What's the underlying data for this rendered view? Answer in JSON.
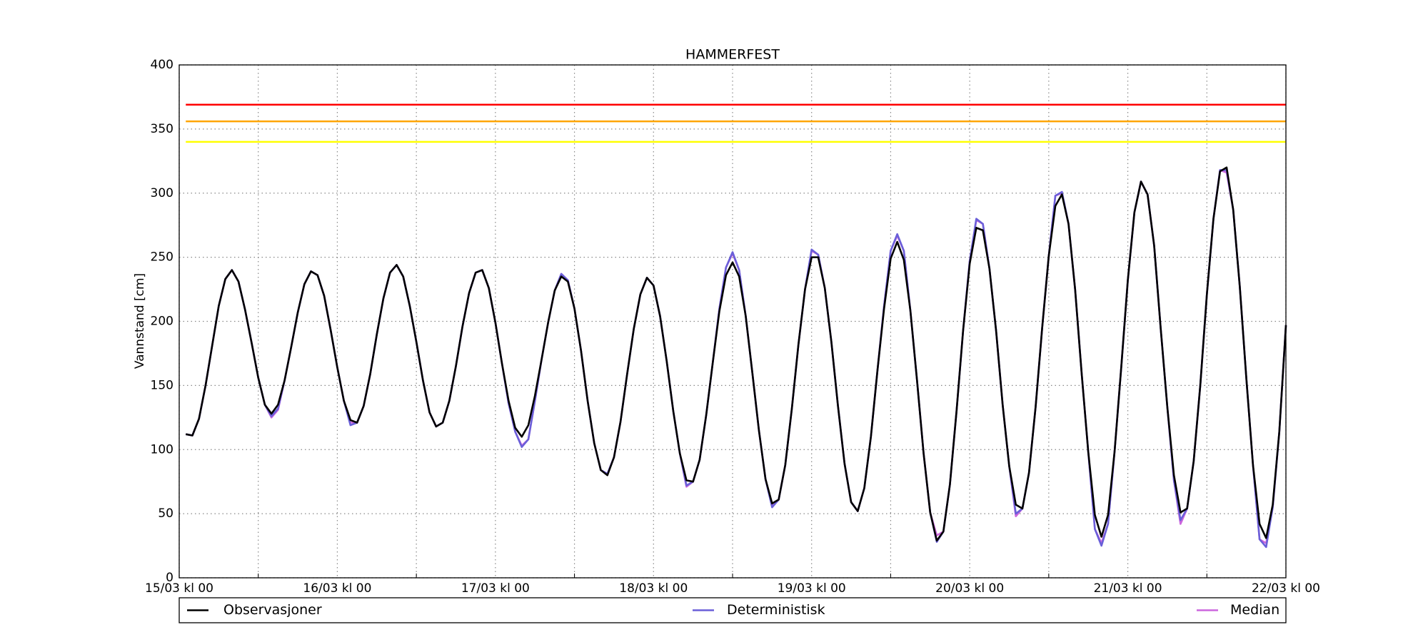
{
  "chart_data": {
    "type": "line",
    "title": "HAMMERFEST",
    "ylabel": "Vannstand [cm]",
    "x": [
      1,
      2,
      3,
      4,
      5,
      6,
      7,
      8,
      9,
      10,
      11,
      12,
      13,
      14,
      15,
      16,
      17,
      18,
      19,
      20,
      21,
      22,
      23,
      24,
      25,
      26,
      27,
      28,
      29,
      30,
      31,
      32,
      33,
      34,
      35,
      36,
      37,
      38,
      39,
      40,
      41,
      42,
      43,
      44,
      45,
      46,
      47,
      48,
      49,
      50,
      51,
      52,
      53,
      54,
      55,
      56,
      57,
      58,
      59,
      60,
      61,
      62,
      63,
      64,
      65,
      66,
      67,
      68,
      69,
      70,
      71,
      72,
      73,
      74,
      75,
      76,
      77,
      78,
      79,
      80,
      81,
      82,
      83,
      84,
      85,
      86,
      87,
      88,
      89,
      90,
      91,
      92,
      93,
      94,
      95,
      96,
      97,
      98,
      99,
      100,
      101,
      102,
      103,
      104,
      105,
      106,
      107,
      108,
      109,
      110,
      111,
      112,
      113,
      114,
      115,
      116,
      117,
      118,
      119,
      120,
      121,
      122,
      123,
      124,
      125,
      126,
      127,
      128,
      129,
      130,
      131,
      132,
      133,
      134,
      135,
      136,
      137,
      138,
      139,
      140,
      141,
      142,
      143,
      144,
      145,
      146,
      147,
      148,
      149,
      150,
      151,
      152,
      153,
      154,
      155,
      156,
      157,
      158,
      159,
      160,
      161,
      162,
      163,
      164,
      165,
      166,
      167,
      168
    ],
    "series": [
      {
        "name": "Observasjoner",
        "color": "#000000",
        "values": [
          112,
          111,
          124,
          150,
          181,
          212,
          233,
          240,
          231,
          209,
          183,
          156,
          135,
          128,
          135,
          154,
          180,
          207,
          229,
          239,
          236,
          220,
          193,
          164,
          138,
          123,
          121,
          134,
          159,
          190,
          218,
          238,
          244,
          235,
          212,
          184,
          154,
          129,
          118,
          121,
          138,
          165,
          196,
          222,
          238,
          240,
          226,
          199,
          167,
          138,
          117,
          110,
          119,
          142,
          170,
          199,
          224,
          235,
          231,
          210,
          177,
          138,
          105,
          84,
          80,
          94,
          122,
          159,
          194,
          221,
          234,
          228,
          204,
          169,
          130,
          97,
          76,
          75,
          92,
          127,
          168,
          208,
          236,
          246,
          235,
          204,
          160,
          115,
          77,
          58,
          61,
          88,
          132,
          182,
          225,
          250,
          250,
          226,
          184,
          134,
          89,
          59,
          52,
          70,
          110,
          162,
          210,
          249,
          262,
          248,
          208,
          154,
          97,
          51,
          29,
          36,
          73,
          130,
          193,
          245,
          273,
          271,
          241,
          193,
          135,
          87,
          57,
          54,
          82,
          133,
          195,
          251,
          290,
          299,
          276,
          225,
          159,
          98,
          49,
          32,
          49,
          99,
          164,
          232,
          285,
          309,
          299,
          259,
          194,
          133,
          80,
          51,
          54,
          91,
          150,
          221,
          280,
          317,
          320,
          287,
          227,
          155,
          88,
          42,
          31,
          57,
          114,
          197
        ]
      },
      {
        "name": "Deterministisk",
        "color": "#6a5fd8",
        "values": [
          112,
          111,
          124,
          150,
          181,
          212,
          233,
          240,
          231,
          209,
          183,
          156,
          135,
          126,
          132,
          154,
          180,
          207,
          229,
          239,
          236,
          220,
          193,
          164,
          138,
          119,
          121,
          134,
          159,
          190,
          218,
          238,
          244,
          235,
          212,
          184,
          154,
          129,
          118,
          121,
          138,
          165,
          196,
          222,
          238,
          240,
          226,
          199,
          167,
          136,
          114,
          102,
          108,
          138,
          170,
          199,
          224,
          237,
          232,
          210,
          177,
          138,
          105,
          84,
          81,
          94,
          122,
          159,
          194,
          221,
          234,
          228,
          204,
          169,
          130,
          97,
          72,
          75,
          92,
          127,
          168,
          210,
          242,
          254,
          240,
          204,
          160,
          115,
          77,
          55,
          61,
          88,
          132,
          182,
          225,
          256,
          252,
          226,
          184,
          134,
          89,
          59,
          52,
          70,
          110,
          162,
          212,
          255,
          268,
          255,
          208,
          154,
          97,
          51,
          28,
          36,
          73,
          130,
          193,
          247,
          280,
          276,
          241,
          193,
          135,
          87,
          50,
          54,
          82,
          133,
          195,
          251,
          298,
          301,
          276,
          225,
          159,
          98,
          38,
          25,
          42,
          99,
          164,
          232,
          285,
          309,
          299,
          259,
          194,
          133,
          76,
          45,
          54,
          91,
          150,
          221,
          280,
          318,
          318,
          287,
          227,
          155,
          88,
          30,
          24,
          55,
          114,
          197
        ]
      },
      {
        "name": "Median",
        "color": "#cc66dd",
        "values": [
          112,
          111,
          124,
          150,
          181,
          212,
          233,
          240,
          231,
          209,
          183,
          156,
          135,
          125,
          131,
          154,
          180,
          207,
          229,
          239,
          236,
          220,
          193,
          164,
          138,
          121,
          121,
          134,
          159,
          190,
          218,
          238,
          244,
          235,
          212,
          184,
          154,
          129,
          118,
          121,
          138,
          165,
          196,
          222,
          238,
          240,
          226,
          199,
          167,
          136,
          114,
          103,
          108,
          138,
          170,
          199,
          224,
          237,
          232,
          210,
          177,
          138,
          105,
          84,
          81,
          94,
          122,
          159,
          194,
          221,
          234,
          228,
          204,
          169,
          130,
          97,
          71,
          75,
          92,
          127,
          168,
          210,
          242,
          253,
          240,
          204,
          160,
          115,
          77,
          56,
          61,
          88,
          132,
          182,
          225,
          255,
          252,
          226,
          184,
          134,
          89,
          59,
          52,
          70,
          110,
          162,
          212,
          255,
          267,
          255,
          208,
          154,
          97,
          51,
          33,
          36,
          73,
          130,
          193,
          247,
          279,
          276,
          241,
          193,
          135,
          87,
          48,
          54,
          82,
          133,
          195,
          251,
          298,
          300,
          276,
          225,
          159,
          98,
          38,
          27,
          42,
          99,
          164,
          232,
          285,
          309,
          299,
          259,
          194,
          133,
          76,
          42,
          54,
          91,
          150,
          221,
          280,
          318,
          316,
          287,
          227,
          155,
          88,
          30,
          27,
          55,
          114,
          197
        ]
      }
    ],
    "reference_lines": [
      {
        "value": 369,
        "color": "#ff0000"
      },
      {
        "value": 356,
        "color": "#ffa500"
      },
      {
        "value": 340,
        "color": "#ffff00"
      }
    ],
    "xlim": [
      0,
      168
    ],
    "xticks": [
      {
        "value": 0,
        "label": "15/03 kl 00"
      },
      {
        "value": 24,
        "label": "16/03 kl 00"
      },
      {
        "value": 48,
        "label": "17/03 kl 00"
      },
      {
        "value": 72,
        "label": "18/03 kl 00"
      },
      {
        "value": 96,
        "label": "19/03 kl 00"
      },
      {
        "value": 120,
        "label": "20/03 kl 00"
      },
      {
        "value": 144,
        "label": "21/03 kl 00"
      },
      {
        "value": 168,
        "label": "22/03 kl 00"
      }
    ],
    "xminorticks": [
      12,
      36,
      60,
      84,
      108,
      132,
      156
    ],
    "ylim": [
      0,
      400
    ],
    "yticks": [
      0,
      50,
      100,
      150,
      200,
      250,
      300,
      350,
      400
    ],
    "grid": true,
    "legend": "below"
  }
}
